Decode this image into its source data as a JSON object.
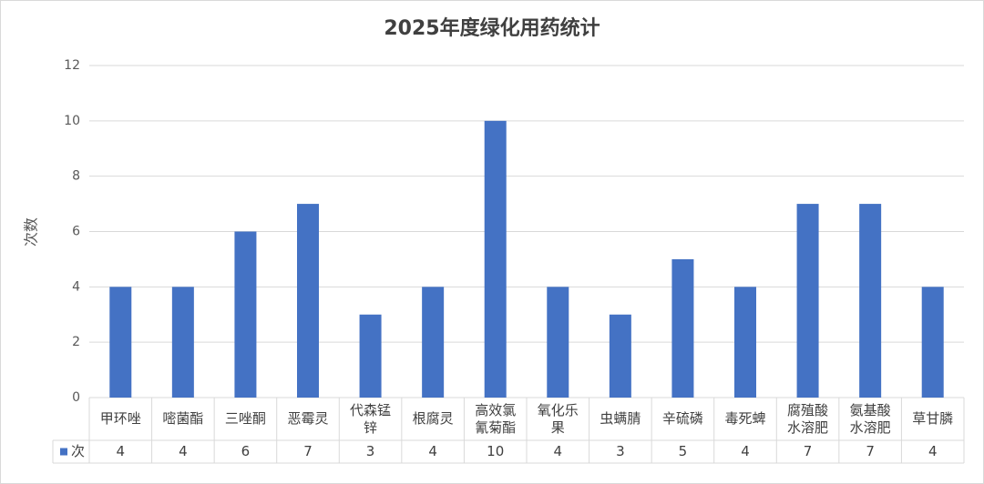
{
  "chart_data": {
    "type": "bar",
    "title": "2025年度绿化用药统计",
    "y_label": "次数",
    "categories": [
      "甲环唑",
      "嘧菌酯",
      "三唑酮",
      "恶霉灵",
      "代森锰锌",
      "根腐灵",
      "高效氯氰菊酯",
      "氧化乐果",
      "虫螨腈",
      "辛硫磷",
      "毒死蜱",
      "腐殖酸水溶肥",
      "氨基酸水溶肥",
      "草甘膦"
    ],
    "series": [
      {
        "name": "次",
        "color": "#4472c4",
        "values": [
          4,
          4,
          6,
          7,
          3,
          4,
          10,
          4,
          3,
          5,
          4,
          7,
          7,
          4
        ]
      }
    ],
    "ylim": [
      0,
      12
    ],
    "yticks": [
      0,
      2,
      4,
      6,
      8,
      10,
      12
    ],
    "grid": true,
    "data_table": true
  }
}
